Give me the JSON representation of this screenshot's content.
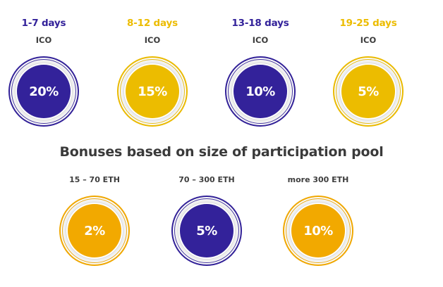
{
  "theme": {
    "purple": "#33229a",
    "yellow": "#ecbc00",
    "orange": "#f2a900"
  },
  "ico_periods": [
    {
      "days": "1-7 days",
      "sub": "ICO",
      "bonus": "20%",
      "color": "purple"
    },
    {
      "days": "8-12 days",
      "sub": "ICO",
      "bonus": "15%",
      "color": "yellow"
    },
    {
      "days": "13-18 days",
      "sub": "ICO",
      "bonus": "10%",
      "color": "purple"
    },
    {
      "days": "19-25 days",
      "sub": "ICO",
      "bonus": "5%",
      "color": "yellow"
    }
  ],
  "pool": {
    "title": "Bonuses based on size of participation pool",
    "tiers": [
      {
        "label": "15 – 70 ETH",
        "bonus": "2%",
        "color": "orange"
      },
      {
        "label": "70 – 300 ETH",
        "bonus": "5%",
        "color": "purple"
      },
      {
        "label": "more 300 ETH",
        "bonus": "10%",
        "color": "orange"
      }
    ]
  }
}
